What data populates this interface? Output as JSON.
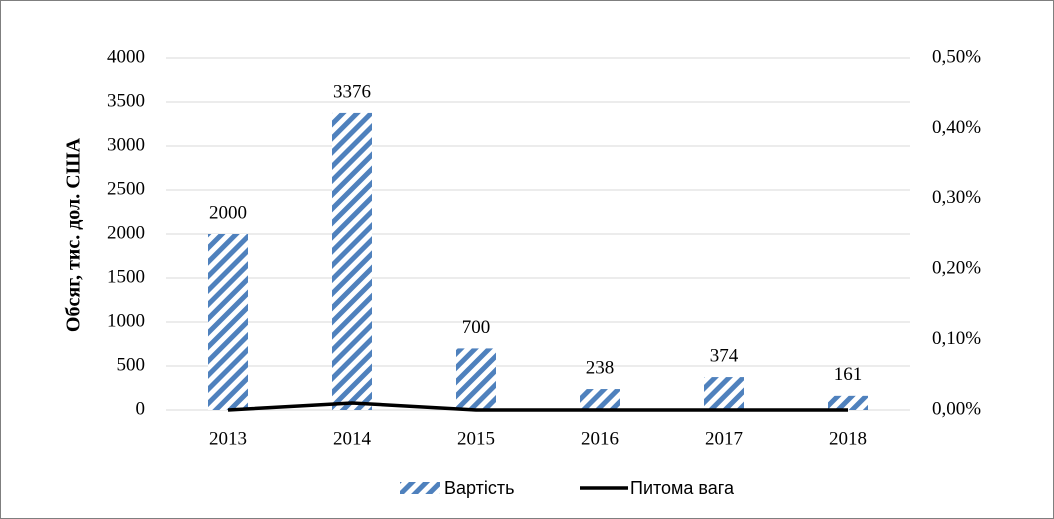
{
  "chart_data": {
    "type": "bar",
    "y_label": "Обсяг, тис. дол. США",
    "categories": [
      "2013",
      "2014",
      "2015",
      "2016",
      "2017",
      "2018"
    ],
    "series": [
      {
        "name": "Вартість",
        "type": "bar",
        "color": "#4f81bd",
        "values": [
          2000,
          3376,
          700,
          238,
          374,
          161
        ]
      },
      {
        "name": "Питома вага",
        "type": "line",
        "axis": "y2",
        "color": "#000000",
        "values": [
          0.0,
          0.01,
          0.0,
          0.0,
          0.0,
          0.0
        ]
      }
    ],
    "ylim": [
      0,
      4000
    ],
    "yticks": [
      0,
      500,
      1000,
      1500,
      2000,
      2500,
      3000,
      3500,
      4000
    ],
    "y2lim": [
      0,
      0.5
    ],
    "y2ticks": [
      {
        "value": 0,
        "label": "0,00%"
      },
      {
        "value": 0.1,
        "label": "0,10%"
      },
      {
        "value": 0.2,
        "label": "0,20%"
      },
      {
        "value": 0.3,
        "label": "0,30%"
      },
      {
        "value": 0.4,
        "label": "0,40%"
      },
      {
        "value": 0.5,
        "label": "0,50%"
      }
    ],
    "grid": true,
    "legend": "bottom"
  }
}
